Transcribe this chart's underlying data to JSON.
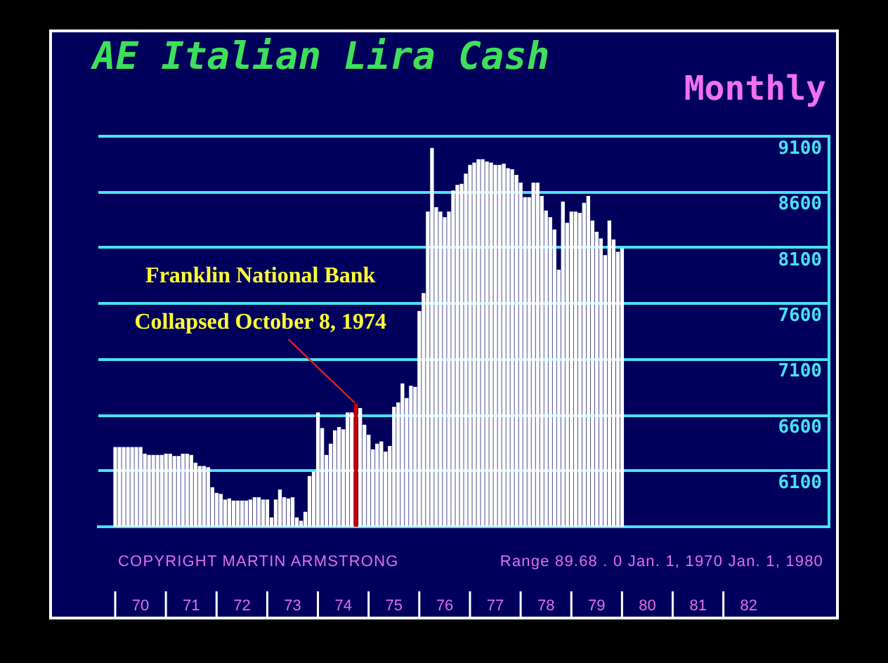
{
  "chart_data": {
    "type": "bar",
    "title": "AE Italian Lira Cash",
    "subtitle": "Monthly",
    "annotations": [
      {
        "text": "Franklin National Bank Collapsed October 8, 1974",
        "x": "1974-10",
        "y": 6700
      },
      "COPYRIGHT MARTIN ARMSTRONG",
      "Range 89.68 . 0 Jan. 1, 1970 Jan. 1, 1980"
    ],
    "x": [
      "1970-01",
      "1970-02",
      "1970-03",
      "1970-04",
      "1970-05",
      "1970-06",
      "1970-07",
      "1970-08",
      "1970-09",
      "1970-10",
      "1970-11",
      "1970-12",
      "1971-01",
      "1971-02",
      "1971-03",
      "1971-04",
      "1971-05",
      "1971-06",
      "1971-07",
      "1971-08",
      "1971-09",
      "1971-10",
      "1971-11",
      "1971-12",
      "1972-01",
      "1972-02",
      "1972-03",
      "1972-04",
      "1972-05",
      "1972-06",
      "1972-07",
      "1972-08",
      "1972-09",
      "1972-10",
      "1972-11",
      "1972-12",
      "1973-01",
      "1973-02",
      "1973-03",
      "1973-04",
      "1973-05",
      "1973-06",
      "1973-07",
      "1973-08",
      "1973-09",
      "1973-10",
      "1973-11",
      "1973-12",
      "1974-01",
      "1974-02",
      "1974-03",
      "1974-04",
      "1974-05",
      "1974-06",
      "1974-07",
      "1974-08",
      "1974-09",
      "1974-10",
      "1974-11",
      "1974-12",
      "1975-01",
      "1975-02",
      "1975-03",
      "1975-04",
      "1975-05",
      "1975-06",
      "1975-07",
      "1975-08",
      "1975-09",
      "1975-10",
      "1975-11",
      "1975-12",
      "1976-01",
      "1976-02",
      "1976-03",
      "1976-04",
      "1976-05",
      "1976-06",
      "1976-07",
      "1976-08",
      "1976-09",
      "1976-10",
      "1976-11",
      "1976-12",
      "1977-01",
      "1977-02",
      "1977-03",
      "1977-04",
      "1977-05",
      "1977-06",
      "1977-07",
      "1977-08",
      "1977-09",
      "1977-10",
      "1977-11",
      "1977-12",
      "1978-01",
      "1978-02",
      "1978-03",
      "1978-04",
      "1978-05",
      "1978-06",
      "1978-07",
      "1978-08",
      "1978-09",
      "1978-10",
      "1978-11",
      "1978-12",
      "1979-01",
      "1979-02",
      "1979-03",
      "1979-04",
      "1979-05",
      "1979-06",
      "1979-07",
      "1979-08",
      "1979-09",
      "1979-10",
      "1979-11",
      "1979-12",
      "1980-01"
    ],
    "values": [
      6310,
      6310,
      6310,
      6310,
      6310,
      6310,
      6310,
      6250,
      6240,
      6240,
      6240,
      6240,
      6250,
      6250,
      6230,
      6230,
      6250,
      6250,
      6240,
      6170,
      6140,
      6140,
      6130,
      5950,
      5900,
      5890,
      5840,
      5850,
      5830,
      5830,
      5830,
      5830,
      5840,
      5860,
      5860,
      5840,
      5840,
      5680,
      5840,
      5930,
      5860,
      5850,
      5860,
      5680,
      5650,
      5730,
      6050,
      6090,
      6620,
      6480,
      6240,
      6340,
      6460,
      6490,
      6470,
      6620,
      6620,
      6700,
      6660,
      6510,
      6420,
      6290,
      6340,
      6360,
      6270,
      6320,
      6670,
      6710,
      6880,
      6750,
      6860,
      6850,
      7530,
      7690,
      8420,
      8990,
      8460,
      8420,
      8370,
      8420,
      8610,
      8660,
      8670,
      8760,
      8840,
      8860,
      8890,
      8890,
      8870,
      8860,
      8840,
      8840,
      8850,
      8810,
      8800,
      8750,
      8680,
      8550,
      8550,
      8680,
      8680,
      8560,
      8430,
      8370,
      8260,
      7900,
      8510,
      8320,
      8420,
      8420,
      8410,
      8500,
      8560,
      8340,
      8240,
      8180,
      8030,
      8340,
      8170,
      8060,
      8090
    ],
    "colors": [
      "#ffffff",
      "#ffffff",
      "#ffffff",
      "#ffffff",
      "#ffffff",
      "#ffffff",
      "#ffffff",
      "#ffffff",
      "#ffffff",
      "#ffffff",
      "#ffffff",
      "#ffffff",
      "#ffffff",
      "#ffffff",
      "#ffffff",
      "#ffffff",
      "#ffffff",
      "#ffffff",
      "#ffffff",
      "#ffffff",
      "#ffffff",
      "#ffffff",
      "#ffffff",
      "#ffffff",
      "#ffffff",
      "#ffffff",
      "#ffffff",
      "#ffffff",
      "#ffffff",
      "#ffffff",
      "#ffffff",
      "#ffffff",
      "#ffffff",
      "#ffffff",
      "#ffffff",
      "#ffffff",
      "#ffffff",
      "#ffffff",
      "#ffffff",
      "#ffffff",
      "#ffffff",
      "#ffffff",
      "#ffffff",
      "#ffffff",
      "#ffffff",
      "#ffffff",
      "#ffffff",
      "#ffffff",
      "#ffffff",
      "#ffffff",
      "#ffffff",
      "#ffffff",
      "#ffffff",
      "#ffffff",
      "#ffffff",
      "#ffffff",
      "#ffffff",
      "#c80000",
      "#ffffff",
      "#ffffff",
      "#ffffff",
      "#ffffff",
      "#ffffff",
      "#ffffff",
      "#ffffff",
      "#ffffff",
      "#ffffff",
      "#ffffff",
      "#ffffff",
      "#ffffff",
      "#ffffff",
      "#ffffff",
      "#ffffff",
      "#ffffff",
      "#ffffff",
      "#ffffff",
      "#ffffff",
      "#ffffff",
      "#ffffff",
      "#ffffff",
      "#ffffff",
      "#ffffff",
      "#ffffff",
      "#ffffff",
      "#ffffff",
      "#ffffff",
      "#ffffff",
      "#ffffff",
      "#ffffff",
      "#ffffff",
      "#ffffff",
      "#ffffff",
      "#ffffff",
      "#ffffff",
      "#ffffff",
      "#ffffff",
      "#ffffff",
      "#ffffff",
      "#ffffff",
      "#ffffff",
      "#ffffff",
      "#ffffff",
      "#ffffff",
      "#ffffff",
      "#ffffff",
      "#ffffff",
      "#ffffff",
      "#ffffff",
      "#ffffff",
      "#ffffff",
      "#ffffff",
      "#ffffff",
      "#ffffff",
      "#ffffff",
      "#ffffff",
      "#ffffff",
      "#ffffff",
      "#ffffff",
      "#ffffff",
      "#ffffff",
      "#ffffff"
    ],
    "xlim": [
      "1969-09",
      "1984-02"
    ],
    "xticks": [
      {
        "value": "1970-07",
        "label": "70"
      },
      {
        "value": "1971-07",
        "label": "71"
      },
      {
        "value": "1972-07",
        "label": "72"
      },
      {
        "value": "1973-07",
        "label": "73"
      },
      {
        "value": "1974-07",
        "label": "74"
      },
      {
        "value": "1975-07",
        "label": "75"
      },
      {
        "value": "1976-07",
        "label": "76"
      },
      {
        "value": "1977-07",
        "label": "77"
      },
      {
        "value": "1978-07",
        "label": "78"
      },
      {
        "value": "1979-07",
        "label": "79"
      },
      {
        "value": "1980-07",
        "label": "80"
      },
      {
        "value": "1981-07",
        "label": "81"
      },
      {
        "value": "1982-07",
        "label": "82"
      }
    ],
    "ylim": [
      5600,
      9100
    ],
    "yticks": [
      {
        "value": 5600,
        "label": null
      },
      6100,
      6600,
      7100,
      7600,
      8100,
      8600,
      9100
    ],
    "grid": "y"
  }
}
